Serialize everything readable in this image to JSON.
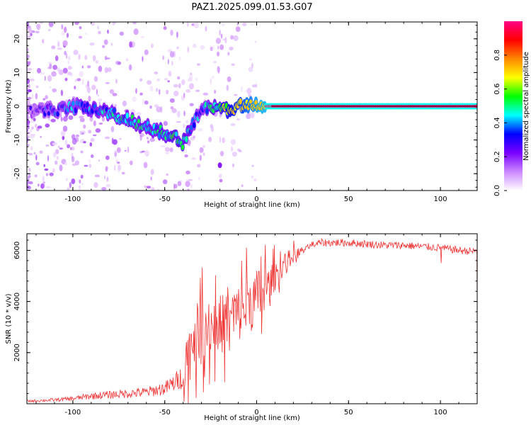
{
  "title": "PAZ1.2025.099.01.53.G07",
  "chart_data": [
    {
      "type": "heatmap",
      "xlabel": "Height of straight line (km)",
      "ylabel": "Frequency (Hz)",
      "xlim": [
        -125,
        120
      ],
      "ylim": [
        -25,
        25
      ],
      "xticks": [
        -100,
        -50,
        0,
        50,
        100
      ],
      "yticks": [
        -20,
        -10,
        0,
        10,
        20
      ],
      "colorbar": {
        "label": "Normalized spectral amplitude",
        "range": [
          0,
          1
        ],
        "ticks": [
          "0.0",
          "0.2",
          "0.4",
          "0.6",
          "0.8"
        ],
        "colors": [
          "#ffffff",
          "#cc88ff",
          "#7a00ff",
          "#0000ff",
          "#00ffff",
          "#00ff00",
          "#ffff00",
          "#ff8800",
          "#ff0000",
          "#ff0088"
        ]
      },
      "ridge": {
        "x": [
          -125,
          -115,
          -105,
          -95,
          -85,
          -75,
          -65,
          -55,
          -45,
          -40,
          -35,
          -30,
          -25,
          -20,
          -15,
          -10,
          -5,
          0,
          10,
          20,
          50,
          100,
          120
        ],
        "freq": [
          -2,
          -1,
          -1,
          0,
          -1,
          -3,
          -5,
          -7,
          -9,
          -11,
          -6,
          -0.5,
          -0.5,
          0,
          -1,
          0,
          1,
          0,
          0,
          0,
          0,
          0,
          0
        ],
        "amplitude": [
          0.2,
          0.3,
          0.35,
          0.4,
          0.4,
          0.45,
          0.45,
          0.45,
          0.5,
          0.5,
          0.4,
          0.35,
          0.45,
          0.55,
          0.65,
          0.7,
          0.75,
          0.8,
          0.85,
          0.9,
          0.95,
          0.95,
          0.95
        ]
      }
    },
    {
      "type": "line",
      "xlabel": "Height of straight line (km)",
      "ylabel": "SNR (10 * v/v)",
      "xlim": [
        -125,
        120
      ],
      "ylim": [
        0,
        6650
      ],
      "xticks": [
        -100,
        -50,
        0,
        50,
        100
      ],
      "yticks": [
        2000,
        4000,
        6000
      ],
      "series": [
        {
          "color": "#ee3333",
          "x": [
            -125,
            -110,
            -100,
            -90,
            -80,
            -70,
            -60,
            -50,
            -45,
            -40,
            -38,
            -35,
            -30,
            -25,
            -20,
            -15,
            -10,
            -5,
            0,
            5,
            10,
            15,
            20,
            25,
            30,
            35,
            40,
            50,
            60,
            70,
            80,
            90,
            100,
            110,
            120
          ],
          "y": [
            100,
            150,
            200,
            300,
            350,
            400,
            450,
            600,
            800,
            1100,
            1500,
            2500,
            3000,
            3000,
            3100,
            3300,
            3500,
            3900,
            4100,
            4500,
            5000,
            5500,
            5800,
            6000,
            6200,
            6300,
            6300,
            6300,
            6250,
            6200,
            6200,
            6150,
            6100,
            6000,
            5950
          ]
        }
      ]
    }
  ]
}
